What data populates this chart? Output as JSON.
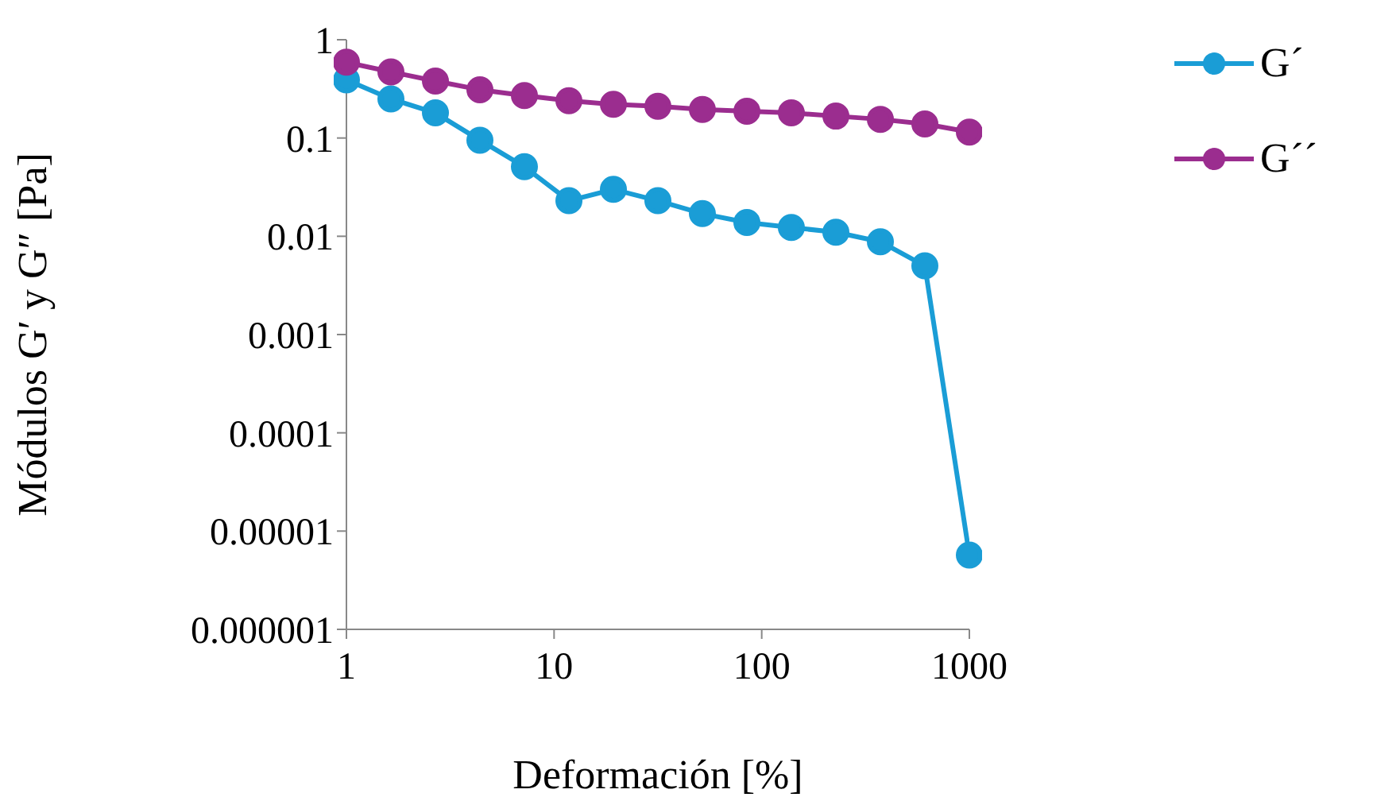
{
  "chart_data": {
    "type": "line",
    "xlabel": "Deformación [%]",
    "ylabel": "Módulos G′ y G″ [Pa]",
    "x": [
      1,
      1.638,
      2.683,
      4.394,
      7.197,
      11.79,
      19.31,
      31.62,
      51.79,
      84.83,
      138.9,
      227.6,
      372.8,
      610.5,
      1000
    ],
    "series": [
      {
        "name": "G´",
        "color": "#1a9dd6",
        "values": [
          0.39,
          0.25,
          0.18,
          0.095,
          0.051,
          0.023,
          0.03,
          0.023,
          0.017,
          0.0138,
          0.0123,
          0.011,
          0.0088,
          0.005,
          5.7e-06
        ]
      },
      {
        "name": "G´´",
        "color": "#9b2d8f",
        "values": [
          0.59,
          0.47,
          0.38,
          0.31,
          0.27,
          0.24,
          0.22,
          0.21,
          0.195,
          0.187,
          0.18,
          0.167,
          0.155,
          0.139,
          0.115
        ]
      }
    ],
    "log": "xy",
    "xlim": [
      1,
      1000
    ],
    "xticks": [
      1,
      10,
      100,
      1000
    ],
    "ylim": [
      1e-06,
      1
    ],
    "yticks": [
      {
        "value": 1e-06,
        "label": "0.000001"
      },
      {
        "value": 1e-05,
        "label": "0.00001"
      },
      0.0001,
      0.001,
      0.01,
      0.1,
      1
    ],
    "grid": false,
    "legend": "top right",
    "marker": "circle",
    "line_style": "solid"
  }
}
